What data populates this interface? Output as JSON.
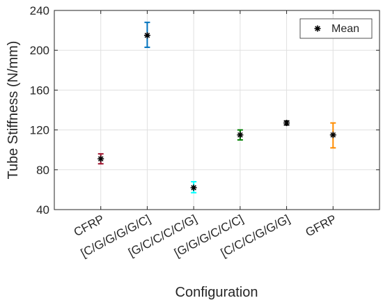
{
  "chart_data": {
    "type": "errorbar",
    "title": "",
    "xlabel": "Configuration",
    "ylabel": "Tube Stiffness (N/mm)",
    "ylim": [
      40,
      240
    ],
    "yticks": [
      40,
      80,
      120,
      160,
      200,
      240
    ],
    "grid": true,
    "legend": {
      "position": "top-right",
      "entries": [
        "Mean"
      ]
    },
    "categories": [
      "CFRP",
      "[C/G/G/G/G/C]",
      "[G/C/C/C/C/G]",
      "[G/G/G/C/C/C]",
      "[C/C/C/G/G/G]",
      "GFRP"
    ],
    "series": [
      {
        "name": "Mean",
        "marker": "asterisk",
        "values": [
          91,
          215,
          62,
          115,
          127,
          115
        ],
        "lower": [
          86,
          203,
          57,
          110,
          125,
          102
        ],
        "upper": [
          96,
          228,
          68,
          120,
          129,
          127
        ],
        "colors": [
          "#a2142f",
          "#0072bd",
          "#00ffff",
          "#008000",
          "#000000",
          "#ff8c00"
        ]
      }
    ]
  }
}
